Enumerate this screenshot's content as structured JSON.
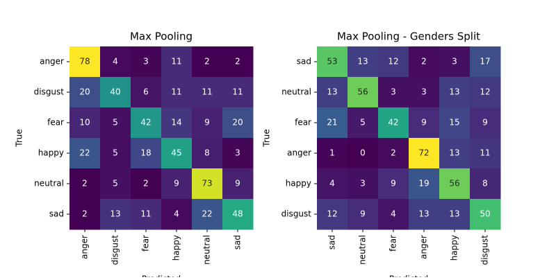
{
  "chart_data": [
    {
      "type": "heatmap",
      "title": "Max Pooling",
      "x_label": "Predicted",
      "y_label": "True",
      "colormap": "viridis",
      "x_categories": [
        "anger",
        "disgust",
        "fear",
        "happy",
        "neutral",
        "sad"
      ],
      "y_categories": [
        "anger",
        "disgust",
        "fear",
        "happy",
        "neutral",
        "sad"
      ],
      "values": [
        [
          78,
          4,
          3,
          11,
          2,
          2
        ],
        [
          20,
          40,
          6,
          11,
          11,
          11
        ],
        [
          10,
          5,
          42,
          14,
          9,
          20
        ],
        [
          22,
          5,
          18,
          45,
          8,
          3
        ],
        [
          2,
          5,
          2,
          9,
          73,
          9
        ],
        [
          2,
          13,
          11,
          4,
          22,
          48
        ]
      ]
    },
    {
      "type": "heatmap",
      "title": "Max Pooling - Genders Split",
      "x_label": "Predicted",
      "y_label": "True",
      "colormap": "viridis",
      "x_categories": [
        "sad",
        "neutral",
        "fear",
        "anger",
        "happy",
        "disgust"
      ],
      "y_categories": [
        "sad",
        "neutral",
        "fear",
        "anger",
        "happy",
        "disgust"
      ],
      "values": [
        [
          53,
          13,
          12,
          2,
          3,
          17
        ],
        [
          13,
          56,
          3,
          3,
          13,
          12
        ],
        [
          21,
          5,
          42,
          9,
          15,
          9
        ],
        [
          1,
          0,
          2,
          72,
          13,
          11
        ],
        [
          4,
          3,
          9,
          19,
          56,
          8
        ],
        [
          12,
          9,
          4,
          13,
          13,
          50
        ]
      ]
    }
  ]
}
